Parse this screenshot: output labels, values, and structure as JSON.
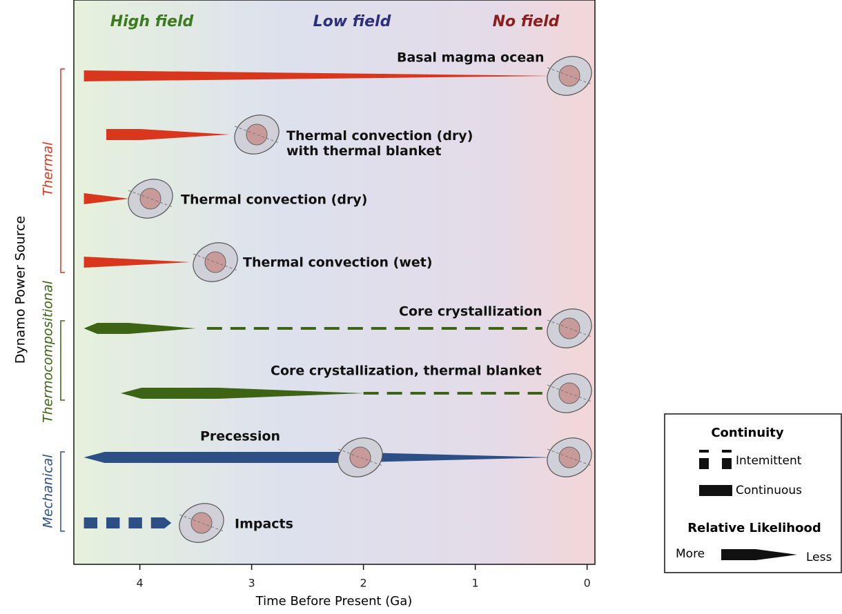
{
  "chart_data": {
    "type": "timeline",
    "field_labels": [
      {
        "text": "High field",
        "color": "#3b7a1e"
      },
      {
        "text": "Low field",
        "color": "#2e2f7a"
      },
      {
        "text": "No field",
        "color": "#8b1d1d"
      }
    ],
    "x_label": "Time Before Present (Ga)",
    "y_label": "Dynamo Power Source",
    "xlim": [
      4.59,
      -0.07
    ],
    "xticks": [
      4,
      3,
      2,
      1,
      0
    ],
    "groups": [
      {
        "name": "Thermal",
        "color": "#d9361e"
      },
      {
        "name": "Thermocompositional",
        "color": "#3d6314"
      },
      {
        "name": "Mechanical",
        "color": "#2c4f86"
      }
    ],
    "rows": [
      {
        "label": "Basal magma ocean",
        "color": "#d9361e",
        "segments": [
          {
            "style": "wedge",
            "from": 4.5,
            "to": 0.3
          }
        ]
      },
      {
        "label": "Thermal convection (dry)\nwith thermal blanket",
        "color": "#d9361e",
        "segments": [
          {
            "style": "wedge",
            "from": 4.3,
            "to": 3.2
          }
        ]
      },
      {
        "label": "Thermal convection (dry)",
        "color": "#d9361e",
        "segments": [
          {
            "style": "wedge",
            "from": 4.5,
            "to": 4.1
          }
        ]
      },
      {
        "label": "Thermal convection (wet)",
        "color": "#d9361e",
        "segments": [
          {
            "style": "wedge",
            "from": 4.5,
            "to": 3.55
          }
        ]
      },
      {
        "label": "Core crystallization",
        "color": "#3d6314",
        "segments": [
          {
            "style": "lens",
            "from": 4.5,
            "to": 3.5
          },
          {
            "style": "dashed",
            "from": 3.4,
            "to": 0.4
          }
        ]
      },
      {
        "label": "Core crystallization, thermal blanket",
        "color": "#3d6314",
        "segments": [
          {
            "style": "lens",
            "from": 4.17,
            "to": 2.0
          },
          {
            "style": "dashed",
            "from": 2.0,
            "to": 0.4
          }
        ]
      },
      {
        "label": "Precession",
        "color": "#2c4f86",
        "segments": [
          {
            "style": "lens",
            "from": 4.5,
            "to": 0.3
          }
        ]
      },
      {
        "label": "Impacts",
        "color": "#2c4f86",
        "segments": [
          {
            "style": "blocks",
            "from": 4.5,
            "to": 3.7
          }
        ]
      }
    ],
    "legend": {
      "title": "Continuity",
      "intermittent": "Intemittent",
      "continuous": "Continuous",
      "likelihood_title": "Relative Likelihood",
      "more": "More",
      "less": "Less"
    }
  }
}
